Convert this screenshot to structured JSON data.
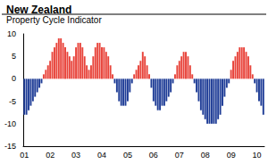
{
  "chart_data": {
    "type": "bar",
    "title": "New Zealand",
    "subtitle": "Property Cycle Indicator",
    "categories": [
      "01",
      null,
      null,
      null,
      null,
      null,
      null,
      null,
      null,
      null,
      null,
      null,
      "02",
      null,
      null,
      null,
      null,
      null,
      null,
      null,
      null,
      null,
      null,
      null,
      "03",
      null,
      null,
      null,
      null,
      null,
      null,
      null,
      null,
      null,
      null,
      null,
      "04",
      null,
      null,
      null,
      null,
      null,
      null,
      null,
      null,
      null,
      null,
      null,
      "05",
      null,
      null,
      null,
      null,
      null,
      null,
      null,
      null,
      null,
      null,
      null,
      "06",
      null,
      null,
      null,
      null,
      null,
      null,
      null,
      null,
      null,
      null,
      null,
      "07",
      null,
      null,
      null,
      null,
      null,
      null,
      null,
      null,
      null,
      null,
      null,
      "08",
      null,
      null,
      null,
      null,
      null,
      null,
      null,
      null,
      null,
      null,
      null,
      "09",
      null,
      null,
      null,
      null,
      null,
      null,
      null,
      null,
      null,
      null,
      null,
      "10",
      null,
      null,
      null
    ],
    "values": [
      -8,
      -8,
      -7,
      -6,
      -5,
      -4,
      -3,
      -2,
      -1,
      1,
      2,
      3,
      4,
      6,
      7,
      8,
      9,
      9,
      8,
      7,
      6,
      5,
      4,
      5,
      7,
      8,
      8,
      7,
      5,
      3,
      2,
      3,
      5,
      7,
      8,
      8,
      7,
      7,
      6,
      5,
      3,
      1,
      -1,
      -3,
      -5,
      -6,
      -6,
      -6,
      -5,
      -3,
      -1,
      1,
      2,
      3,
      4,
      6,
      5,
      3,
      1,
      -2,
      -5,
      -6,
      -7,
      -7,
      -6,
      -6,
      -5,
      -4,
      -3,
      -1,
      1,
      3,
      4,
      5,
      6,
      6,
      5,
      3,
      1,
      -1,
      -3,
      -5,
      -7,
      -8,
      -9,
      -10,
      -10,
      -10,
      -10,
      -10,
      -9,
      -8,
      -6,
      -4,
      -2,
      -1,
      2,
      4,
      5,
      6,
      7,
      7,
      7,
      6,
      5,
      3,
      1,
      -1,
      -3,
      -5,
      -6,
      -8
    ],
    "colors": [
      "#1e3c96",
      "#1e3c96",
      "#1e3c96",
      "#1e3c96",
      "#1e3c96",
      "#1e3c96",
      "#1e3c96",
      "#1e3c96",
      "#1e3c96",
      "#e8433a",
      "#e8433a",
      "#e8433a",
      "#e8433a",
      "#e8433a",
      "#e8433a",
      "#e8433a",
      "#e8433a",
      "#e8433a",
      "#e8433a",
      "#e8433a",
      "#e8433a",
      "#e8433a",
      "#e8433a",
      "#e8433a",
      "#e8433a",
      "#e8433a",
      "#e8433a",
      "#e8433a",
      "#e8433a",
      "#e8433a",
      "#e8433a",
      "#e8433a",
      "#e8433a",
      "#e8433a",
      "#e8433a",
      "#e8433a",
      "#e8433a",
      "#e8433a",
      "#e8433a",
      "#e8433a",
      "#e8433a",
      "#e8433a",
      "#1e3c96",
      "#1e3c96",
      "#1e3c96",
      "#1e3c96",
      "#1e3c96",
      "#1e3c96",
      "#1e3c96",
      "#1e3c96",
      "#1e3c96",
      "#e8433a",
      "#e8433a",
      "#e8433a",
      "#e8433a",
      "#e8433a",
      "#e8433a",
      "#e8433a",
      "#e8433a",
      "#1e3c96",
      "#1e3c96",
      "#1e3c96",
      "#1e3c96",
      "#1e3c96",
      "#1e3c96",
      "#1e3c96",
      "#1e3c96",
      "#1e3c96",
      "#1e3c96",
      "#1e3c96",
      "#e8433a",
      "#e8433a",
      "#e8433a",
      "#e8433a",
      "#e8433a",
      "#e8433a",
      "#e8433a",
      "#e8433a",
      "#e8433a",
      "#1e3c96",
      "#1e3c96",
      "#1e3c96",
      "#1e3c96",
      "#1e3c96",
      "#1e3c96",
      "#1e3c96",
      "#1e3c96",
      "#1e3c96",
      "#1e3c96",
      "#1e3c96",
      "#1e3c96",
      "#1e3c96",
      "#1e3c96",
      "#1e3c96",
      "#1e3c96",
      "#1e3c96",
      "#e8433a",
      "#e8433a",
      "#e8433a",
      "#e8433a",
      "#e8433a",
      "#e8433a",
      "#e8433a",
      "#e8433a",
      "#e8433a",
      "#e8433a",
      "#e8433a",
      "#1e3c96",
      "#1e3c96",
      "#1e3c96",
      "#1e3c96",
      "#1e3c96"
    ],
    "ylim": [
      -15,
      10
    ],
    "yticks": [
      -15,
      -10,
      -5,
      0,
      5,
      10
    ],
    "grid": false
  }
}
